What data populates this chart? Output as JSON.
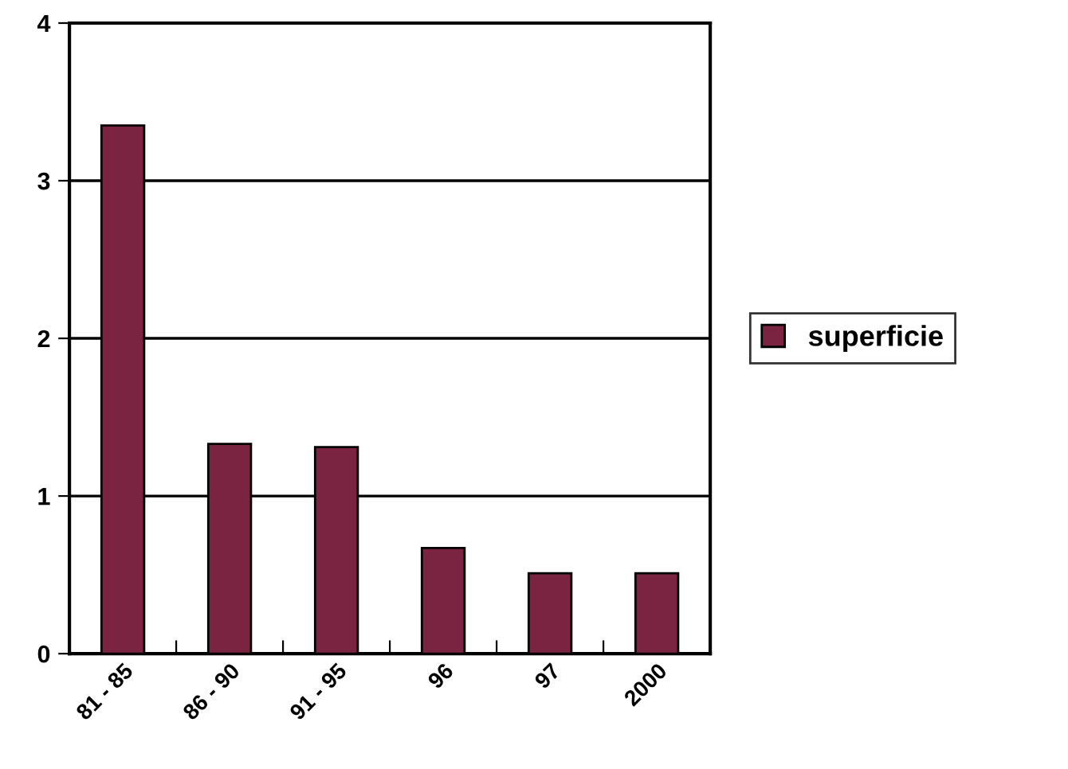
{
  "chart_data": {
    "type": "bar",
    "categories": [
      "81 - 85",
      "86 - 90",
      "91 - 95",
      "96",
      "97",
      "2000"
    ],
    "series": [
      {
        "name": "superficie",
        "color": "#7b2442",
        "values": [
          3.35,
          1.33,
          1.31,
          0.67,
          0.51,
          0.51
        ]
      }
    ],
    "ylim": [
      0,
      4
    ],
    "yticks": [
      0,
      1,
      2,
      3,
      4
    ],
    "grid": "y",
    "legend": "right"
  }
}
